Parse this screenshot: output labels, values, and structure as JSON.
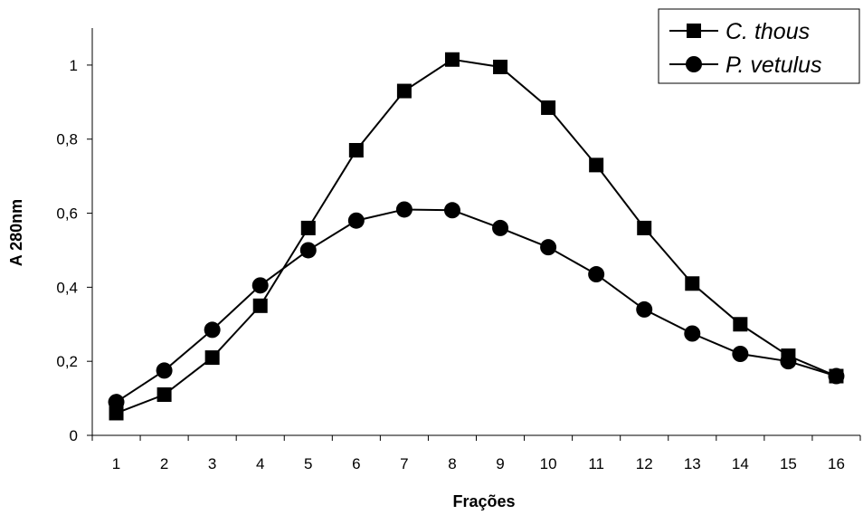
{
  "chart_data": {
    "type": "line",
    "title": "",
    "xlabel": "Frações",
    "ylabel": "A 280nm",
    "categories": [
      "1",
      "2",
      "3",
      "4",
      "5",
      "6",
      "7",
      "8",
      "9",
      "10",
      "11",
      "12",
      "13",
      "14",
      "15",
      "16"
    ],
    "ylim": [
      0,
      1.1
    ],
    "yticks": [
      "0",
      "0,2",
      "0,4",
      "0,6",
      "0,8",
      "1"
    ],
    "grid": false,
    "legend_position": "top-right",
    "series": [
      {
        "name": "C. thous",
        "marker": "square",
        "color": "#000000",
        "values": [
          0.06,
          0.11,
          0.21,
          0.35,
          0.56,
          0.77,
          0.93,
          1.015,
          0.995,
          0.885,
          0.73,
          0.56,
          0.41,
          0.3,
          0.215,
          0.16
        ]
      },
      {
        "name": "P. vetulus",
        "marker": "circle",
        "color": "#000000",
        "values": [
          0.09,
          0.175,
          0.285,
          0.405,
          0.5,
          0.58,
          0.61,
          0.608,
          0.56,
          0.508,
          0.435,
          0.34,
          0.275,
          0.22,
          0.2,
          0.16
        ]
      }
    ]
  }
}
